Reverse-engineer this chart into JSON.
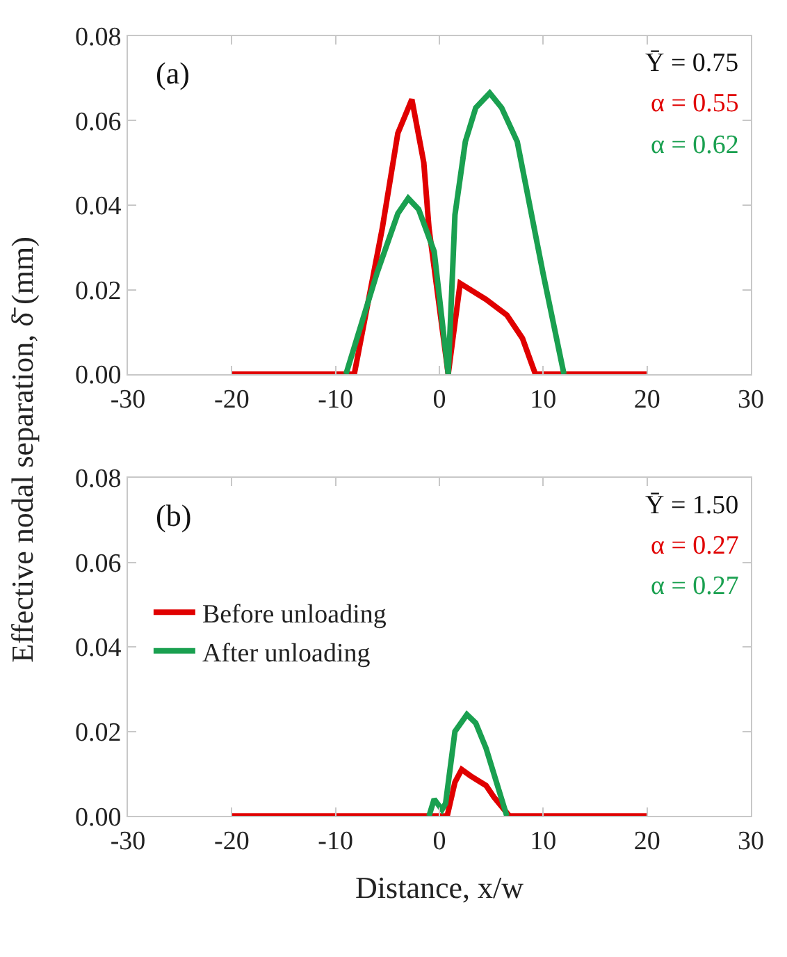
{
  "chart_data": [
    {
      "type": "line",
      "ylabel": "Effective nodal separation, δ̄ (mm)",
      "xlim": [
        -30,
        30
      ],
      "xticks": [
        -30,
        -20,
        -10,
        0,
        10,
        20,
        30
      ],
      "ylim": [
        0,
        0.08
      ],
      "yticks": [
        {
          "value": 0,
          "label": "0.00"
        },
        {
          "value": 0.02,
          "label": "0.02"
        },
        {
          "value": 0.04,
          "label": "0.04"
        },
        {
          "value": 0.06,
          "label": "0.06"
        },
        {
          "value": 0.08,
          "label": "0.08"
        }
      ],
      "legend": false,
      "marker": "none",
      "line_style": "solid",
      "annotations": [
        "(a)",
        "Ȳ = 0.75",
        "α = 0.55",
        "α = 0.62"
      ],
      "series": [
        {
          "color": "#e00000",
          "x": [
            -20,
            -8.2,
            -5.5,
            -4,
            -2.65,
            -1.5,
            -1,
            0.85,
            2.0,
            4.5,
            6.5,
            8,
            9.25,
            20
          ],
          "values": [
            0,
            0,
            0.0345,
            0.057,
            0.065,
            0.05,
            0.0345,
            0,
            0.0215,
            0.0177,
            0.014,
            0.0085,
            0,
            0
          ]
        },
        {
          "color": "#1aa050",
          "x": [
            -9,
            -6,
            -4,
            -3,
            -2,
            -0.5,
            0.85,
            1.5,
            2.5,
            3.5,
            4.85,
            6,
            7.5,
            10,
            12
          ],
          "values": [
            0,
            0.024,
            0.038,
            0.0416,
            0.039,
            0.029,
            0,
            0.0377,
            0.055,
            0.063,
            0.0665,
            0.063,
            0.055,
            0.0237,
            0
          ]
        }
      ]
    },
    {
      "type": "line",
      "xlabel": "Distance, x/w",
      "xlim": [
        -30,
        30
      ],
      "xticks": [
        -30,
        -20,
        -10,
        0,
        10,
        20,
        30
      ],
      "ylim": [
        0,
        0.08
      ],
      "yticks": [
        {
          "value": 0,
          "label": "0.00"
        },
        {
          "value": 0.02,
          "label": "0.02"
        },
        {
          "value": 0.04,
          "label": "0.04"
        },
        {
          "value": 0.06,
          "label": "0.06"
        },
        {
          "value": 0.08,
          "label": "0.08"
        }
      ],
      "legend": "left",
      "marker": "none",
      "line_style": "solid",
      "annotations": [
        "(b)",
        "Ȳ = 1.50",
        "α = 0.27",
        "α = 0.27"
      ],
      "series": [
        {
          "name": "Before unloading",
          "color": "#e00000",
          "x": [
            -20,
            0.75,
            1.5,
            2.15,
            3,
            4.5,
            5.25,
            6.75,
            20
          ],
          "values": [
            0,
            0,
            0.008,
            0.011,
            0.0095,
            0.0072,
            0.0045,
            0,
            0
          ]
        },
        {
          "name": "After unloading",
          "color": "#1aa050",
          "x": [
            -1.0,
            -0.5,
            0.25,
            0.6,
            1.5,
            2.65,
            3.5,
            4.5,
            6.5
          ],
          "values": [
            0,
            0.004,
            0.0015,
            0.003,
            0.02,
            0.024,
            0.022,
            0.016,
            0
          ]
        }
      ]
    }
  ]
}
